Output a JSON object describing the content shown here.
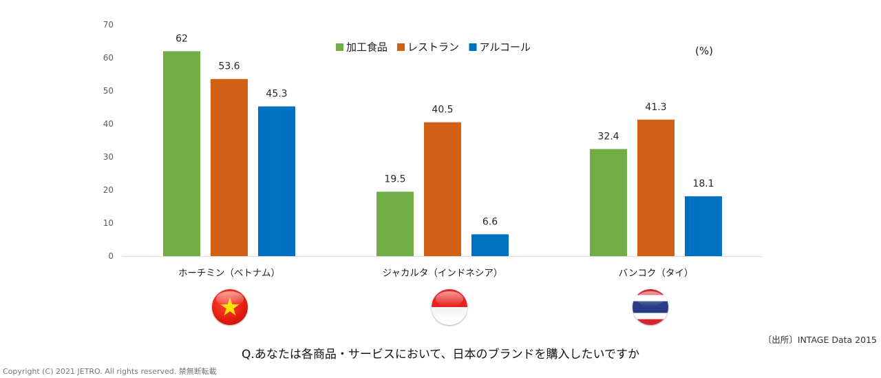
{
  "chart_data": {
    "type": "bar",
    "categories": [
      "ホーチミン（ベトナム）",
      "ジャカルタ（インドネシア）",
      "バンコク（タイ）"
    ],
    "series": [
      {
        "name": "加工食品",
        "values": [
          62,
          19.5,
          32.4
        ],
        "color": "#70ad47"
      },
      {
        "name": "レストラン",
        "values": [
          53.6,
          40.5,
          41.3
        ],
        "color": "#d26014"
      },
      {
        "name": "アルコール",
        "values": [
          45.3,
          6.6,
          18.1
        ],
        "color": "#0070c0"
      }
    ],
    "data_labels": [
      [
        "62",
        "19.5",
        "32.4"
      ],
      [
        "53.6",
        "40.5",
        "41.3"
      ],
      [
        "45.3",
        "6.6",
        "18.1"
      ]
    ],
    "ylim": [
      0,
      70
    ],
    "yticks": [
      0,
      10,
      20,
      30,
      40,
      50,
      60,
      70
    ],
    "unit_label": "(%)",
    "legend_position": "top-center",
    "grid": false
  },
  "flags": [
    {
      "country": "vietnam",
      "icon": "vietnam-flag-icon"
    },
    {
      "country": "indonesia",
      "icon": "indonesia-flag-icon"
    },
    {
      "country": "thailand",
      "icon": "thailand-flag-icon"
    }
  ],
  "source": "〔出所〕INTAGE Data 2015",
  "question": "Q.あなたは各商品・サービスにおいて、日本のブランドを購入したいですか",
  "copyright": "Copyright (C) 2021 JETRO. All rights reserved. 禁無断転載"
}
